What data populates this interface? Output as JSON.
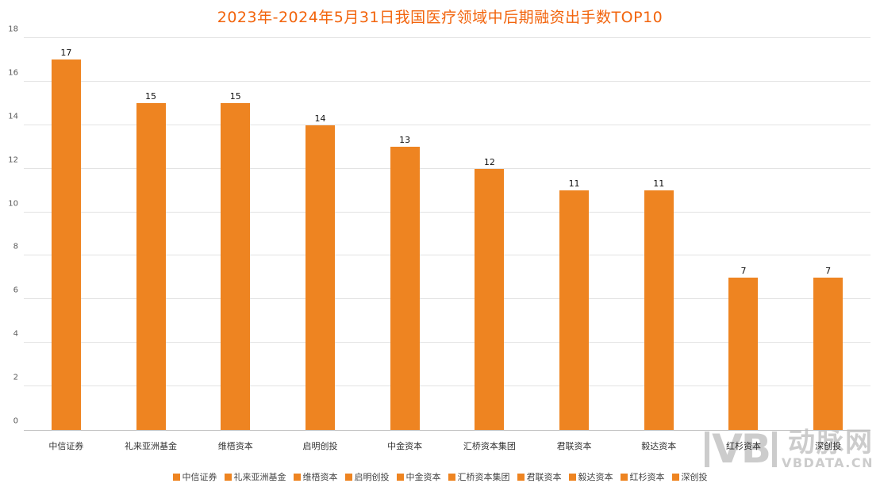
{
  "title": "2023年-2024年5月31日我国医疗领域中后期融资出手数TOP10",
  "colors": {
    "bar": "#ee8421",
    "title": "#f2640c",
    "grid": "#e3e3e3",
    "axis": "#bfbfbf",
    "tick": "#595959",
    "watermark": "#cccccc"
  },
  "chart_data": {
    "type": "bar",
    "title": "2023年-2024年5月31日我国医疗领域中后期融资出手数TOP10",
    "categories": [
      "中信证券",
      "礼来亚洲基金",
      "维梧资本",
      "启明创投",
      "中金资本",
      "汇桥资本集团",
      "君联资本",
      "毅达资本",
      "红杉资本",
      "深创投"
    ],
    "values": [
      17,
      15,
      15,
      14,
      13,
      12,
      11,
      11,
      7,
      7
    ],
    "xlabel": "",
    "ylabel": "",
    "ylim": [
      0,
      18
    ],
    "ytick_step": 2,
    "grid": true,
    "legend_position": "bottom",
    "bar_color": "#ee8421"
  },
  "legend": {
    "items": [
      "中信证券",
      "礼来亚洲基金",
      "维梧资本",
      "启明创投",
      "中金资本",
      "汇桥资本集团",
      "君联资本",
      "毅达资本",
      "红杉资本",
      "深创投"
    ]
  },
  "watermark": {
    "logo": "VB",
    "brand": "动脉网",
    "site": "VBDATA.CN"
  }
}
